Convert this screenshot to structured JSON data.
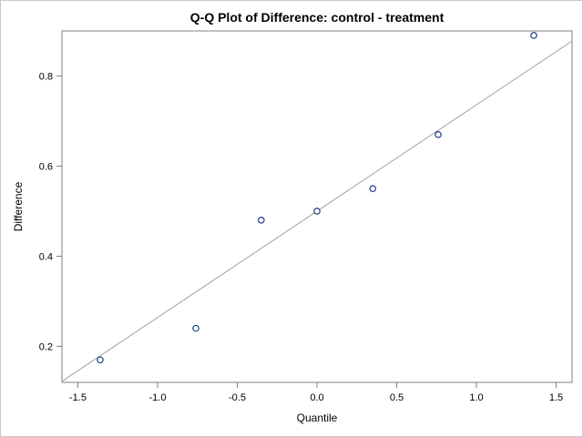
{
  "chart_data": {
    "type": "scatter",
    "title": "Q-Q Plot of Difference: control - treatment",
    "xlabel": "Quantile",
    "ylabel": "Difference",
    "xlim": [
      -1.6,
      1.6
    ],
    "ylim": [
      0.12,
      0.9
    ],
    "xticks": [
      -1.5,
      -1.0,
      -0.5,
      0.0,
      0.5,
      1.0,
      1.5
    ],
    "xtick_labels": [
      "-1.5",
      "-1.0",
      "-0.5",
      "0.0",
      "0.5",
      "1.0",
      "1.5"
    ],
    "yticks": [
      0.2,
      0.4,
      0.6,
      0.8
    ],
    "ytick_labels": [
      "0.2",
      "0.4",
      "0.6",
      "0.8"
    ],
    "grid": false,
    "points": [
      {
        "x": -1.36,
        "y": 0.17
      },
      {
        "x": -0.76,
        "y": 0.24
      },
      {
        "x": -0.35,
        "y": 0.48
      },
      {
        "x": 0.0,
        "y": 0.5
      },
      {
        "x": 0.35,
        "y": 0.55
      },
      {
        "x": 0.76,
        "y": 0.67
      },
      {
        "x": 1.36,
        "y": 0.89
      }
    ],
    "reference_line": {
      "intercept": 0.5,
      "slope": 0.236
    },
    "colors": {
      "marker": "#1f3f8a",
      "reference_line": "#a0a0a0",
      "axis": "#808080"
    }
  }
}
